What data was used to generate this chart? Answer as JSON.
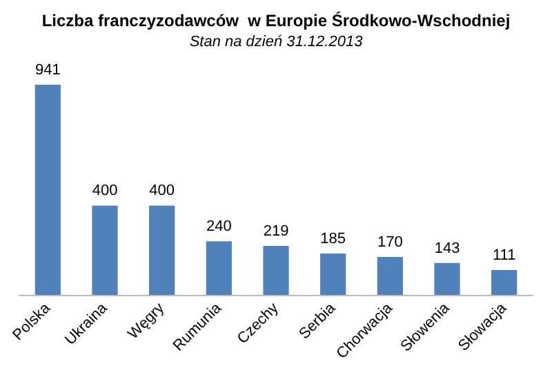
{
  "chart_data": {
    "type": "bar",
    "title": "Liczba franczyzodawców  w Europie Środkowo-Wschodniej",
    "subtitle": "Stan na dzień 31.12.2013",
    "categories": [
      "Polska",
      "Ukraina",
      "Węgry",
      "Rumunia",
      "Czechy",
      "Serbia",
      "Chorwacja",
      "Słowenia",
      "Słowacja"
    ],
    "values": [
      941,
      400,
      400,
      240,
      219,
      185,
      170,
      143,
      111
    ],
    "color": "#4f81bd",
    "data_labels": true
  }
}
